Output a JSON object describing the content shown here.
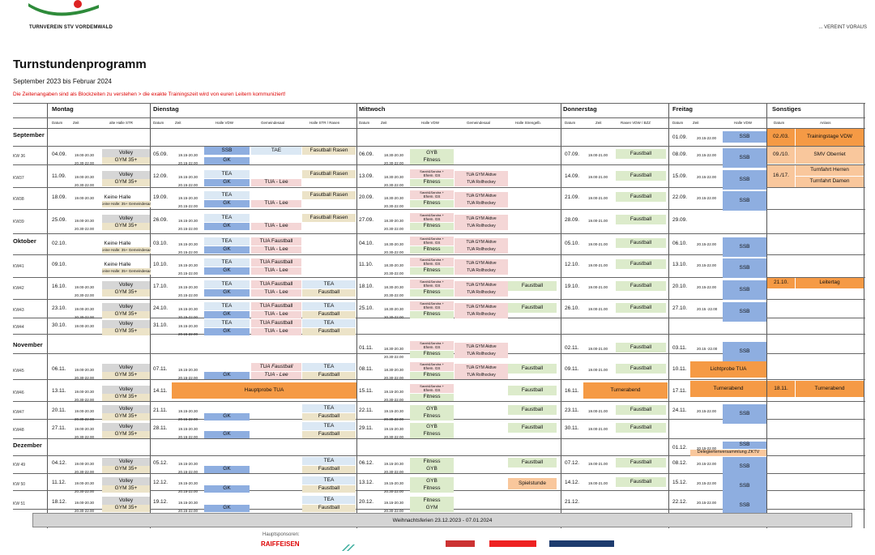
{
  "header": {
    "club": "TURNVEREIN STV VORDEMWALD",
    "slogan": "... VEREINT VORAUS",
    "logo_icon": "stv-logo-icon"
  },
  "title": "Turnstundenprogramm",
  "subtitle": "September 2023 bis Februar 2024",
  "note": "Die Zeitenangaben sind als Blockzeiten zu verstehen > die exakte Trainingszeit wird von euren Leitern kommuniziert!",
  "days": [
    {
      "name": "Montag",
      "cols": [
        "Datum",
        "Zeit",
        "alte Halle STR"
      ]
    },
    {
      "name": "Dienstag",
      "cols": [
        "Datum",
        "Zeit",
        "Halle VDW",
        "Gemeindesaal",
        "Halle STR / Rasen"
      ]
    },
    {
      "name": "Mittwoch",
      "cols": [
        "Datum",
        "Zeit",
        "Halle VDW",
        "Gemeindesaal",
        "Halle Strengelb."
      ]
    },
    {
      "name": "Donnerstag",
      "cols": [
        "Datum",
        "Zeit",
        "Rasen VDW / BZZ"
      ]
    },
    {
      "name": "Freitag",
      "cols": [
        "Datum",
        "Zeit",
        "Halle VDW"
      ]
    },
    {
      "name": "Sonstiges",
      "cols": [
        "Datum",
        "Anlass"
      ]
    }
  ],
  "months": [
    "September",
    "Oktober",
    "November",
    "Dezember"
  ],
  "weeks": [
    "KW 36",
    "KW37",
    "KW38",
    "KW39",
    "KW41",
    "KW42",
    "KW43",
    "KW44",
    "KW45",
    "KW46",
    "KW47",
    "KW48",
    "KW 49",
    "KW 50",
    "KW 51"
  ],
  "labels": {
    "mon": [
      "04.09.",
      "11.09.",
      "18.09.",
      "25.09.",
      "02.10.",
      "09.10.",
      "16.10.",
      "23.10.",
      "30.10.",
      "06.11.",
      "13.11.",
      "20.11.",
      "27.11.",
      "04.12.",
      "11.12.",
      "18.12."
    ],
    "tue": [
      "05.09.",
      "12.09.",
      "19.09.",
      "26.09.",
      "03.10.",
      "10.10.",
      "17.10.",
      "24.10.",
      "31.10.",
      "07.11.",
      "14.11.",
      "21.11.",
      "28.11.",
      "05.12.",
      "12.12.",
      "19.12."
    ],
    "wed": [
      "06.09.",
      "13.09.",
      "20.09.",
      "27.09.",
      "04.10.",
      "11.10.",
      "18.10.",
      "25.10.",
      "01.11.",
      "08.11.",
      "15.11.",
      "22.11.",
      "29.11.",
      "06.12.",
      "13.12.",
      "20.12."
    ],
    "thu": [
      "07.09.",
      "14.09.",
      "21.09.",
      "28.09.",
      "05.10.",
      "12.10.",
      "19.10.",
      "26.10.",
      "02.11.",
      "09.11.",
      "16.11.",
      "23.11.",
      "30.11.",
      "07.12.",
      "14.12.",
      "21.12."
    ],
    "fri": [
      "01.09.",
      "08.09.",
      "15.09.",
      "22.09.",
      "29.09.",
      "06.10.",
      "13.10.",
      "20.10.",
      "27.10.",
      "03.11.",
      "10.11.",
      "17.11.",
      "24.11.",
      "01.12.",
      "08.12.",
      "15.12.",
      "22.12."
    ],
    "t_mon1": "19.00-20.30",
    "t_mon2": "20.30-22.00",
    "t_tue1": "19.15-20.30",
    "t_tue2": "20.15-22.00",
    "t_wed1": "18.30-20.30",
    "t_wed1b": "19.15-20.30",
    "t_wed2": "20.30-22.00",
    "t_thu": "19.00-21.00",
    "t_fri": "20.15-22.00",
    "volley": "Volley",
    "gym": "GYM 35+",
    "keine": "Keine Halle",
    "keine_sub": "Keine Halle: 35+ Gemeindesaal",
    "ssb": "SSB",
    "gk": "GK",
    "tea": "TEA",
    "tae": "TAE",
    "tua_lee": "TUA - Lee",
    "tua_fb": "TUA Faustball",
    "fb_rasen": "Fasutball Rasen",
    "faustball": "Faustball",
    "gyb": "GYB",
    "fitness": "Fitness",
    "gym_w": "GYM",
    "sarah": "Sarah&Sandra +",
    "ehem": "Ehem. GS",
    "tua_gym": "TUA GYM Aktive",
    "tua_roll": "TUA Rollhockey",
    "hauptprobe": "Hauptprobe TUA",
    "lichtprobe": "Lichtprobe TUA",
    "turnerabend": "Turnerabend",
    "spielstunde": "Spielstunde",
    "delegierten": "Delegiertenversammlung ZKTV",
    "so_d": [
      "02./03.",
      "09./10.",
      "16./17.",
      "21.10.",
      "18.11."
    ],
    "so_a": [
      "Trainingstage VDW",
      "SMV Oberriet",
      "Turnfahrt Herren",
      "Turnfahrt Damen",
      "Leitertag",
      "Turnerabend"
    ],
    "fri_time_alt": "20.15 -22.00"
  },
  "footer": "Weihnachtsferien 23.12.2023 - 07.01.2024",
  "sponsors_label": "Hauptsponsoren:",
  "sponsors": [
    "RAIFFEISEN"
  ]
}
